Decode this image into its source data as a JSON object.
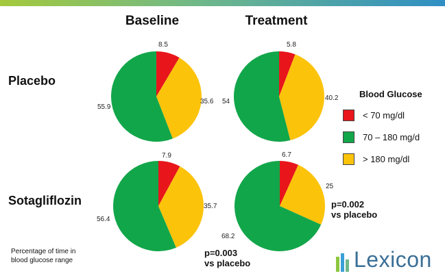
{
  "header_colors": [
    "#a4c93c",
    "#2f8fc4"
  ],
  "columns": [
    "Baseline",
    "Treatment"
  ],
  "rows": [
    "Placebo",
    "Sotagliflozin"
  ],
  "legend": {
    "title": "Blood Glucose",
    "items": [
      {
        "label": "< 70 mg/dl",
        "color": "#e8161b"
      },
      {
        "label": "70 – 180  mg/d",
        "color": "#12a64a"
      },
      {
        "label": "> 180 mg/dl",
        "color": "#fcc30b"
      }
    ]
  },
  "annotations": {
    "p_treatment": [
      "p=0.002",
      "vs placebo"
    ],
    "p_baseline": [
      "p=0.003",
      "vs placebo"
    ]
  },
  "footnote": [
    "Percentage of time in",
    "blood glucose range"
  ],
  "logo": {
    "text": "Lexicon",
    "color": "#3a6f96"
  },
  "chart_data": [
    {
      "type": "pie",
      "row": "Placebo",
      "column": "Baseline",
      "categories": [
        "< 70 mg/dl",
        "70 – 180  mg/d",
        "> 180 mg/dl"
      ],
      "values": [
        8.5,
        55.9,
        35.6
      ],
      "labels": [
        "8.5",
        "55.9",
        "35.6"
      ]
    },
    {
      "type": "pie",
      "row": "Placebo",
      "column": "Treatment",
      "categories": [
        "< 70 mg/dl",
        "70 – 180  mg/d",
        "> 180 mg/dl"
      ],
      "values": [
        5.8,
        54,
        40.2
      ],
      "labels": [
        "5.8",
        "54",
        "40.2"
      ]
    },
    {
      "type": "pie",
      "row": "Sotagliflozin",
      "column": "Baseline",
      "categories": [
        "< 70 mg/dl",
        "70 – 180  mg/d",
        "> 180 mg/dl"
      ],
      "values": [
        7.9,
        56.4,
        35.7
      ],
      "labels": [
        "7.9",
        "56.4",
        "35.7"
      ]
    },
    {
      "type": "pie",
      "row": "Sotagliflozin",
      "column": "Treatment",
      "categories": [
        "< 70 mg/dl",
        "70 – 180  mg/d",
        "> 180 mg/dl"
      ],
      "values": [
        6.7,
        68.2,
        25
      ],
      "labels": [
        "6.7",
        "68.2",
        "25"
      ]
    }
  ]
}
